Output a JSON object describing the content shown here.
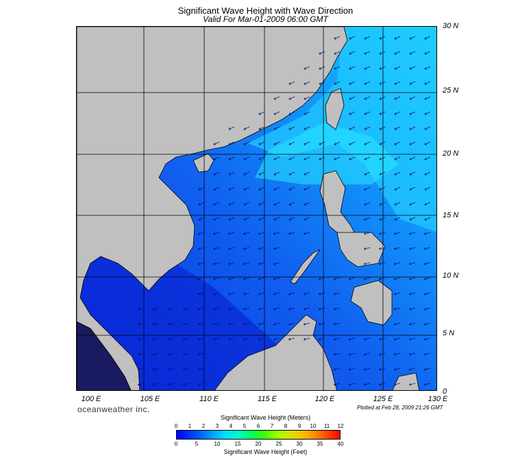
{
  "title": "Significant Wave Height with Wave Direction",
  "subtitle": "Valid For Mar-01-2009 06:00 GMT",
  "lat_labels": [
    "30 N",
    "25 N",
    "20 N",
    "15 N",
    "10 N",
    "5 N",
    "0"
  ],
  "lon_labels": [
    "100 E",
    "105 E",
    "110 E",
    "115 E",
    "120 E",
    "125 E",
    "130 E"
  ],
  "brand": "oceanweather inc.",
  "plotted": "Plotted at Feb 28, 2009 21:26 GMT",
  "colorbar": {
    "title_meters": "Significant Wave Height (Meters)",
    "title_feet": "Significant Wave Height (Feet)",
    "meter_ticks": [
      "0",
      "1",
      "2",
      "3",
      "4",
      "5",
      "6",
      "7",
      "8",
      "9",
      "10",
      "11",
      "12"
    ],
    "feet_ticks": [
      "0",
      "5",
      "10",
      "15",
      "20",
      "25",
      "30",
      "35",
      "40"
    ]
  },
  "colors": {
    "land": "#c0c0c0",
    "sea_low": "#0a3ee8",
    "sea_high": "#16e0ff"
  }
}
